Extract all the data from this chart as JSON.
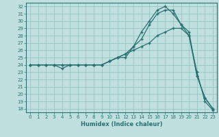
{
  "xlabel": "Humidex (Indice chaleur)",
  "xlim": [
    -0.5,
    23.5
  ],
  "ylim": [
    17.5,
    32.5
  ],
  "xticks": [
    0,
    1,
    2,
    3,
    4,
    5,
    6,
    7,
    8,
    9,
    10,
    11,
    12,
    13,
    14,
    15,
    16,
    17,
    18,
    19,
    20,
    21,
    22,
    23
  ],
  "yticks": [
    18,
    19,
    20,
    21,
    22,
    23,
    24,
    25,
    26,
    27,
    28,
    29,
    30,
    31,
    32
  ],
  "bg_color": "#c0e0e0",
  "grid_color": "#90c0c0",
  "line_color": "#2a7070",
  "line1_x": [
    0,
    1,
    2,
    3,
    4,
    5,
    6,
    7,
    8,
    9,
    10,
    11,
    12,
    13,
    14,
    15,
    16,
    17,
    18,
    19,
    20,
    21,
    22,
    23
  ],
  "line1_y": [
    24,
    24,
    24,
    24,
    24,
    24,
    24,
    24,
    24,
    24,
    24.5,
    25,
    25.5,
    26,
    26.5,
    27,
    28,
    28.5,
    29,
    29,
    28,
    23,
    19,
    17.8
  ],
  "line2_x": [
    0,
    1,
    2,
    3,
    4,
    5,
    6,
    7,
    8,
    9,
    10,
    11,
    12,
    13,
    14,
    15,
    16,
    17,
    18,
    19,
    20,
    21,
    22,
    23
  ],
  "line2_y": [
    24,
    24,
    24,
    24,
    24,
    24,
    24,
    24,
    24,
    24,
    24.5,
    25,
    25.5,
    26.5,
    27.5,
    29.5,
    31,
    31.5,
    31.5,
    29.5,
    28.5,
    22.5,
    19.5,
    18
  ],
  "line3_x": [
    0,
    1,
    2,
    3,
    4,
    5,
    6,
    7,
    8,
    9,
    10,
    11,
    12,
    13,
    14,
    15,
    16,
    17,
    18,
    19,
    20,
    21,
    22,
    23
  ],
  "line3_y": [
    24,
    24,
    24,
    24,
    23.5,
    24,
    24,
    24,
    24,
    24,
    24.5,
    25,
    25,
    26.5,
    28.5,
    30,
    31.5,
    32,
    31,
    29.5,
    28,
    22.5,
    19.5,
    18
  ]
}
